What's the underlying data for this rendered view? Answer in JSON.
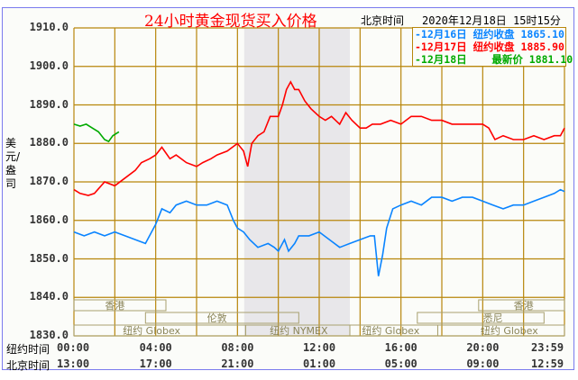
{
  "header": {
    "title": "24小时黄金现货买入价格",
    "beijing_label": "北京时间",
    "datetime": "2020年12月18日 15时15分"
  },
  "legend": [
    {
      "date": "-12月16日",
      "label": "纽约收盘",
      "value": "1865.10",
      "color": "#0a84ff"
    },
    {
      "date": "-12月17日",
      "label": "纽约收盘",
      "value": "1885.90",
      "color": "#ff0000"
    },
    {
      "date": "-12月18日",
      "label": "最新价",
      "value": "1881.10",
      "color": "#00aa00"
    }
  ],
  "y_unit": "美元/盎司",
  "row_labels": {
    "ny": "纽约时间",
    "bj": "北京时间"
  },
  "chart_data": {
    "type": "line",
    "title": "24小时黄金现货买入价格",
    "ylabel": "美元/盎司",
    "ylim": [
      1830,
      1910
    ],
    "xlim": [
      0,
      24
    ],
    "yticks": [
      "1910.0",
      "1900.0",
      "1890.0",
      "1880.0",
      "1870.0",
      "1860.0",
      "1850.0",
      "1840.0",
      "1830.0"
    ],
    "xticks_ny": [
      "00:00",
      "04:00",
      "08:00",
      "12:00",
      "16:00",
      "20:00",
      "23:59"
    ],
    "xticks_bj": [
      "13:00",
      "17:00",
      "21:00",
      "01:00",
      "05:00",
      "09:00",
      "12:59"
    ],
    "grid": true,
    "shaded_range": [
      8.33,
      13.5
    ],
    "sessions": [
      {
        "name": "香港",
        "start": 0,
        "end": 4.5,
        "row": 0,
        "label_at": 2
      },
      {
        "name": "香港",
        "start": 19.8,
        "end": 24,
        "row": 0,
        "label_at": 22
      },
      {
        "name": "伦敦",
        "start": 3.5,
        "end": 11,
        "row": 1,
        "label_at": 7
      },
      {
        "name": "悉尼",
        "start": 16.8,
        "end": 23,
        "row": 1,
        "label_at": 20.5
      },
      {
        "name": "纽约 Globex",
        "start": 0,
        "end": 8.4,
        "row": 2,
        "label_at": 3.8
      },
      {
        "name": "纽约 NYMEX",
        "start": 8.4,
        "end": 13.5,
        "row": 2,
        "label_at": 11
      },
      {
        "name": "纽约 Globex",
        "start": 13.5,
        "end": 17.8,
        "row": 2,
        "label_at": 15.5
      },
      {
        "name": "纽约 Globex",
        "start": 17.8,
        "end": 24,
        "row": 2,
        "label_at": 21.3
      }
    ],
    "series": [
      {
        "name": "12月16日",
        "color": "#0a84ff",
        "x": [
          0,
          0.5,
          1,
          1.5,
          2,
          2.5,
          3,
          3.5,
          4,
          4.3,
          4.7,
          5,
          5.5,
          6,
          6.5,
          7,
          7.5,
          7.8,
          8,
          8.3,
          8.6,
          9,
          9.5,
          9.8,
          10,
          10.3,
          10.5,
          10.8,
          11,
          11.5,
          12,
          12.5,
          13,
          13.5,
          14,
          14.5,
          14.7,
          14.9,
          15.1,
          15.3,
          15.6,
          16,
          16.5,
          17,
          17.5,
          18,
          18.5,
          19,
          19.5,
          20,
          20.5,
          21,
          21.5,
          22,
          22.5,
          23,
          23.5,
          23.8,
          24
        ],
        "y": [
          1857,
          1856,
          1857,
          1856,
          1857,
          1856,
          1855,
          1854,
          1859,
          1863,
          1862,
          1864,
          1865,
          1864,
          1864,
          1865,
          1864,
          1860,
          1858,
          1857,
          1855,
          1853,
          1854,
          1853,
          1852,
          1855,
          1852,
          1854,
          1856,
          1856,
          1857,
          1855,
          1853,
          1854,
          1855,
          1856,
          1856,
          1845.5,
          1851,
          1858,
          1863,
          1864,
          1865,
          1864,
          1866,
          1866,
          1865,
          1866,
          1866,
          1865,
          1864,
          1863,
          1864,
          1864,
          1865,
          1866,
          1867,
          1868,
          1867.5
        ]
      },
      {
        "name": "12月17日",
        "color": "#ff0000",
        "x": [
          0,
          0.3,
          0.7,
          1,
          1.5,
          2,
          2.5,
          3,
          3.3,
          3.7,
          4,
          4.3,
          4.7,
          5,
          5.5,
          6,
          6.3,
          6.7,
          7,
          7.5,
          8,
          8.3,
          8.5,
          8.7,
          9,
          9.3,
          9.6,
          10,
          10.2,
          10.4,
          10.6,
          10.8,
          11,
          11.3,
          11.6,
          12,
          12.3,
          12.6,
          13,
          13.3,
          13.6,
          14,
          14.3,
          14.6,
          15,
          15.5,
          16,
          16.5,
          17,
          17.5,
          18,
          18.5,
          19,
          19.5,
          20,
          20.3,
          20.6,
          21,
          21.5,
          22,
          22.5,
          23,
          23.5,
          23.8,
          24
        ],
        "y": [
          1868,
          1867,
          1866.5,
          1867,
          1870,
          1869,
          1871,
          1873,
          1875,
          1876,
          1877,
          1879,
          1876,
          1877,
          1875,
          1874,
          1875,
          1876,
          1877,
          1878,
          1880,
          1878,
          1874,
          1880,
          1882,
          1883,
          1887,
          1887,
          1890,
          1894,
          1896,
          1894,
          1894,
          1891,
          1889,
          1887,
          1886,
          1887,
          1885,
          1888,
          1886,
          1884,
          1884,
          1885,
          1885,
          1886,
          1885,
          1887,
          1887,
          1886,
          1886,
          1885,
          1885,
          1885,
          1885,
          1884,
          1881,
          1882,
          1881,
          1881,
          1882,
          1881,
          1882,
          1882,
          1884
        ]
      },
      {
        "name": "12月18日",
        "color": "#00aa00",
        "x": [
          0,
          0.3,
          0.6,
          0.9,
          1.2,
          1.5,
          1.7,
          1.9,
          2.2
        ],
        "y": [
          1885,
          1884.5,
          1885,
          1884,
          1883,
          1881,
          1880.5,
          1882,
          1883
        ]
      }
    ]
  }
}
